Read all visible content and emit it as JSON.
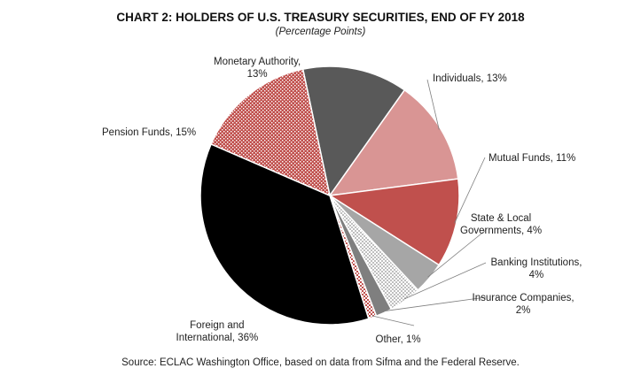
{
  "chart_data": {
    "type": "pie",
    "title": "CHART 2: HOLDERS OF U.S. TREASURY SECURITIES, END OF FY 2018",
    "subtitle": "(Percentage Points)",
    "unit": "%",
    "slices": [
      {
        "name": "Monetary Authority",
        "value": 13,
        "color": "#595959",
        "pattern": "solid",
        "label_lines": [
          "Monetary Authority,",
          "13%"
        ]
      },
      {
        "name": "Individuals",
        "value": 13,
        "color": "#d99594",
        "pattern": "solid",
        "label_lines": [
          "Individuals,  13%"
        ]
      },
      {
        "name": "Mutual Funds",
        "value": 11,
        "color": "#c0504d",
        "pattern": "solid",
        "label_lines": [
          "Mutual Funds, 11%"
        ]
      },
      {
        "name": "State & Local Governments",
        "value": 4,
        "color": "#a6a6a6",
        "pattern": "solid",
        "label_lines": [
          "State & Local",
          "Governments,  4%"
        ]
      },
      {
        "name": "Banking Institutions",
        "value": 4,
        "color": "#d9d9d9",
        "pattern": "checker",
        "label_lines": [
          "Banking Institutions,",
          "4%"
        ]
      },
      {
        "name": "Insurance Companies",
        "value": 2,
        "color": "#7f7f7f",
        "pattern": "solid",
        "label_lines": [
          "Insurance Companies,",
          "2%"
        ]
      },
      {
        "name": "Other",
        "value": 1,
        "color": "#c0504d",
        "pattern": "checker",
        "label_lines": [
          "Other, 1%"
        ]
      },
      {
        "name": "Foreign and International",
        "value": 36,
        "color": "#000000",
        "pattern": "solid",
        "label_lines": [
          "Foreign and",
          "International,  36%"
        ]
      },
      {
        "name": "Pension Funds",
        "value": 15,
        "color": "#c0504d",
        "pattern": "dots",
        "label_lines": [
          "Pension Funds, 15%"
        ]
      }
    ],
    "source": "Source: ECLAC Washington Office, based on data from Sifma  and the Federal Reserve."
  }
}
